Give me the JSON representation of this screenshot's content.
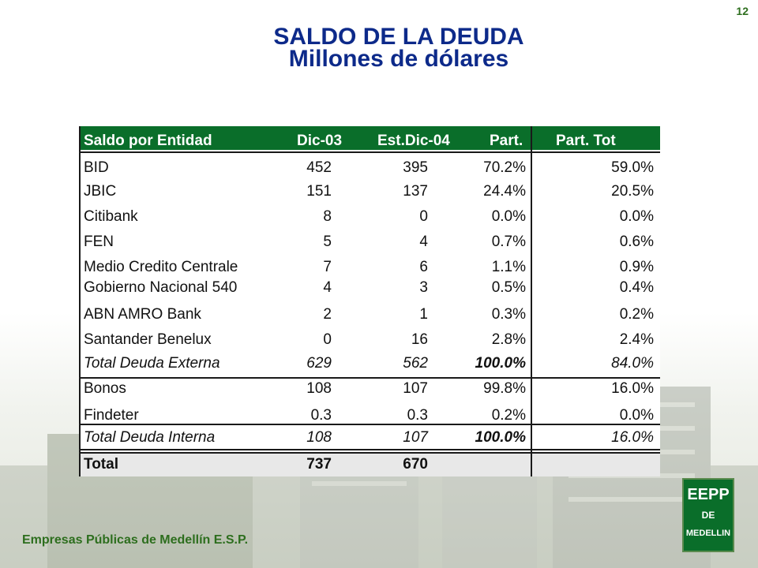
{
  "page_number": "12",
  "title": "SALDO DE LA DEUDA",
  "subtitle": "Millones de dólares",
  "table": {
    "headers": [
      "Saldo por Entidad",
      "Dic-03",
      "Est.Dic-04",
      "Part.",
      "Part. Tot"
    ],
    "rows": [
      {
        "entity": "BID",
        "dic03": "452",
        "est04": "395",
        "part": "70.2%",
        "part_tot": "59.0%"
      },
      {
        "entity": "JBIC",
        "dic03": "151",
        "est04": "137",
        "part": "24.4%",
        "part_tot": "20.5%"
      },
      {
        "entity": "Citibank",
        "dic03": "8",
        "est04": "0",
        "part": "0.0%",
        "part_tot": "0.0%"
      },
      {
        "entity": "FEN",
        "dic03": "5",
        "est04": "4",
        "part": "0.7%",
        "part_tot": "0.6%"
      },
      {
        "entity": "Medio Credito Centrale",
        "dic03": "7",
        "est04": "6",
        "part": "1.1%",
        "part_tot": "0.9%"
      },
      {
        "entity": "Gobierno Nacional 540",
        "dic03": "4",
        "est04": "3",
        "part": "0.5%",
        "part_tot": "0.4%"
      },
      {
        "entity": "ABN AMRO Bank",
        "dic03": "2",
        "est04": "1",
        "part": "0.3%",
        "part_tot": "0.2%"
      },
      {
        "entity": "Santander Benelux",
        "dic03": "0",
        "est04": "16",
        "part": "2.8%",
        "part_tot": "2.4%"
      },
      {
        "entity": "Total Deuda Externa",
        "dic03": "629",
        "est04": "562",
        "part": "100.0%",
        "part_tot": "84.0%"
      },
      {
        "entity": "Bonos",
        "dic03": "108",
        "est04": "107",
        "part": "99.8%",
        "part_tot": "16.0%"
      },
      {
        "entity": "Findeter",
        "dic03": "0.3",
        "est04": "0.3",
        "part": "0.2%",
        "part_tot": "0.0%"
      },
      {
        "entity": "Total Deuda Interna",
        "dic03": "108",
        "est04": "107",
        "part": "100.0%",
        "part_tot": "16.0%"
      },
      {
        "entity": "Total",
        "dic03": "737",
        "est04": "670",
        "part": "",
        "part_tot": ""
      }
    ]
  },
  "footer": "Empresas Públicas de Medellín E.S.P.",
  "logo": {
    "line1": "EEPP",
    "line2": "DE",
    "line3": "MEDELLIN"
  }
}
